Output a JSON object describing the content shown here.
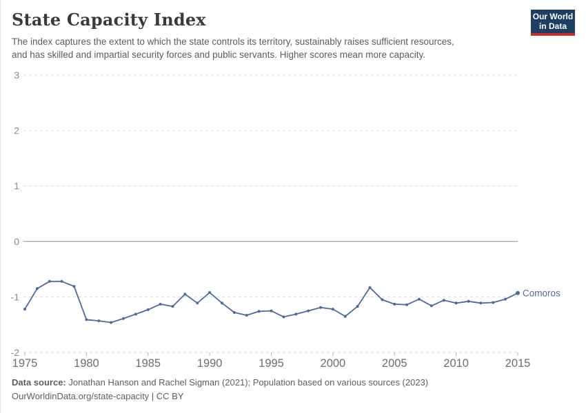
{
  "header": {
    "title": "State Capacity Index",
    "subtitle_lines": [
      "The index captures the extent to which the state controls its territory, sustainably raises sufficient resources,",
      "and has skilled and impartial security forces and public servants. Higher scores mean more capacity."
    ],
    "logo": {
      "line1": "Our World",
      "line2": "in Data"
    }
  },
  "chart_data": {
    "type": "line",
    "title": "State Capacity Index",
    "xlabel": "",
    "ylabel": "",
    "xlim": [
      1975,
      2015
    ],
    "ylim": [
      -2,
      3
    ],
    "grid": "horizontal-dashed",
    "zero_line": true,
    "legend_position": "end-of-line-label",
    "x_ticks": [
      1975,
      1980,
      1985,
      1990,
      1995,
      2000,
      2005,
      2010,
      2015
    ],
    "y_ticks": [
      3,
      2,
      1,
      0,
      -1,
      -2
    ],
    "x": [
      1975,
      1976,
      1977,
      1978,
      1979,
      1980,
      1981,
      1982,
      1983,
      1984,
      1985,
      1986,
      1987,
      1988,
      1989,
      1990,
      1991,
      1992,
      1993,
      1994,
      1995,
      1996,
      1997,
      1998,
      1999,
      2000,
      2001,
      2002,
      2003,
      2004,
      2005,
      2006,
      2007,
      2008,
      2009,
      2010,
      2011,
      2012,
      2013,
      2014,
      2015
    ],
    "series": [
      {
        "name": "Comoros",
        "color": "#4c6a9c",
        "values": [
          -1.22,
          -0.85,
          -0.72,
          -0.72,
          -0.81,
          -1.41,
          -1.43,
          -1.46,
          -1.39,
          -1.31,
          -1.23,
          -1.13,
          -1.17,
          -0.95,
          -1.11,
          -0.92,
          -1.11,
          -1.28,
          -1.33,
          -1.26,
          -1.25,
          -1.36,
          -1.31,
          -1.25,
          -1.19,
          -1.22,
          -1.35,
          -1.17,
          -0.83,
          -1.05,
          -1.13,
          -1.14,
          -1.04,
          -1.16,
          -1.06,
          -1.11,
          -1.08,
          -1.11,
          -1.1,
          -1.04,
          -0.93
        ]
      }
    ]
  },
  "footer": {
    "source_label": "Data source:",
    "source_text": " Jonathan Hanson and Rachel Sigman (2021); Population based on various sources (2023)",
    "note_line": "OurWorldinData.org/state-capacity | CC BY"
  },
  "colors": {
    "series": "#4c6a9c",
    "grid": "#d9d9d9",
    "zero_line": "#8a8a8a",
    "x_tick_mark": "#b3b3b3",
    "axis_text_y": "#8a8a8a",
    "axis_text_x": "#6e6e6e",
    "logo_bg": "#1d3d63",
    "logo_accent": "#c3302b"
  }
}
